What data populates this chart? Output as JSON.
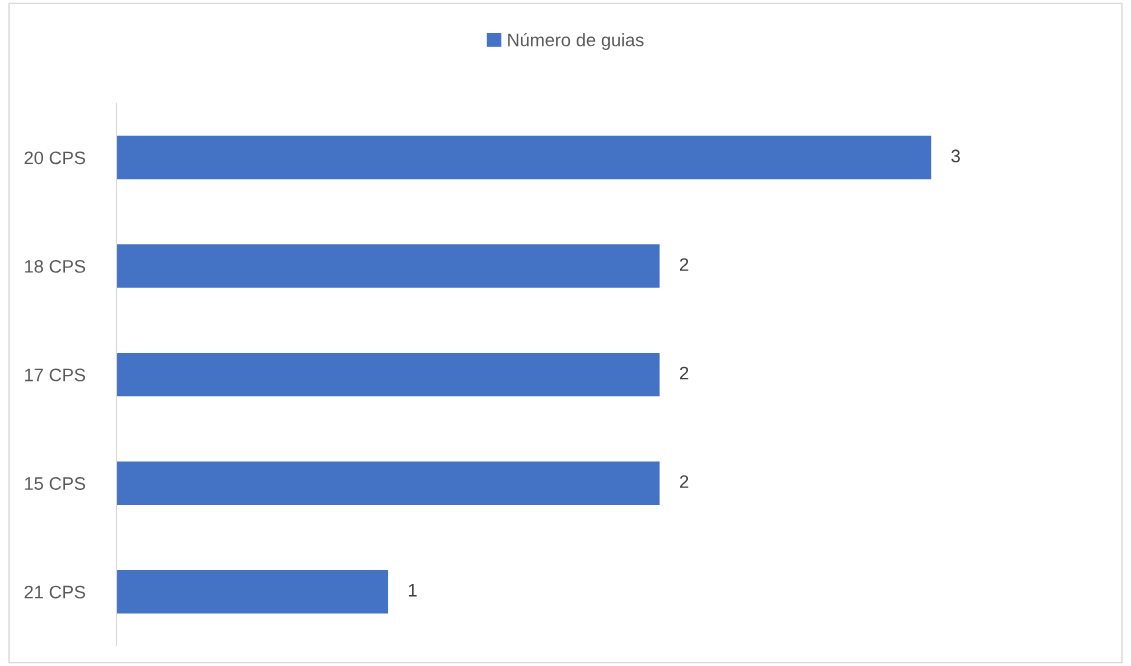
{
  "chart_data": {
    "type": "bar",
    "orientation": "horizontal",
    "categories": [
      "20 CPS",
      "18 CPS",
      "17 CPS",
      "15 CPS",
      "21 CPS"
    ],
    "series": [
      {
        "name": "Número de guias",
        "color": "#4472c4",
        "values": [
          3,
          2,
          2,
          2,
          1
        ]
      }
    ],
    "data_labels": true,
    "legend": "top",
    "grid": false,
    "tick_labels": "y"
  }
}
